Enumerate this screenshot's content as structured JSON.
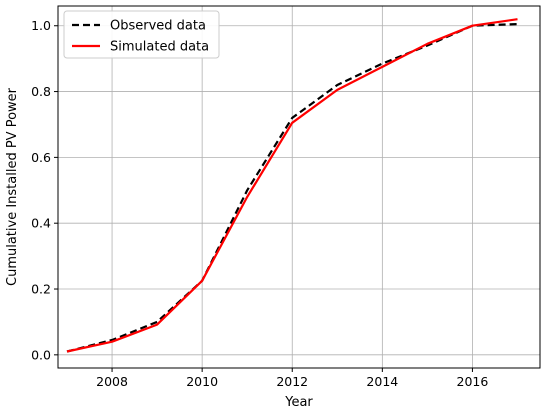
{
  "chart_data": {
    "type": "line",
    "xlabel": "Year",
    "ylabel": "Cumulative Installed PV Power",
    "xlim": [
      2006.8,
      2017.5
    ],
    "ylim": [
      -0.04,
      1.06
    ],
    "x_ticks": [
      2008,
      2010,
      2012,
      2014,
      2016
    ],
    "y_ticks": [
      0.0,
      0.2,
      0.4,
      0.6,
      0.8,
      1.0
    ],
    "x_tick_labels": [
      "2008",
      "2010",
      "2012",
      "2014",
      "2016"
    ],
    "y_tick_labels": [
      "0.0",
      "0.2",
      "0.4",
      "0.6",
      "0.8",
      "1.0"
    ],
    "grid": true,
    "legend_position": "upper-left",
    "series": [
      {
        "name": "Observed data",
        "color": "#000000",
        "style": "dashed",
        "x": [
          2007,
          2008,
          2009,
          2010,
          2011,
          2012,
          2013,
          2014,
          2015,
          2016,
          2017
        ],
        "y": [
          0.01,
          0.045,
          0.1,
          0.225,
          0.5,
          0.72,
          0.82,
          0.885,
          0.94,
          1.0,
          1.005
        ]
      },
      {
        "name": "Simulated data",
        "color": "#ff0000",
        "style": "solid",
        "x": [
          2007,
          2008,
          2009,
          2010,
          2011,
          2012,
          2013,
          2014,
          2015,
          2016,
          2017
        ],
        "y": [
          0.01,
          0.04,
          0.092,
          0.225,
          0.48,
          0.705,
          0.805,
          0.875,
          0.945,
          1.0,
          1.02
        ]
      }
    ]
  }
}
